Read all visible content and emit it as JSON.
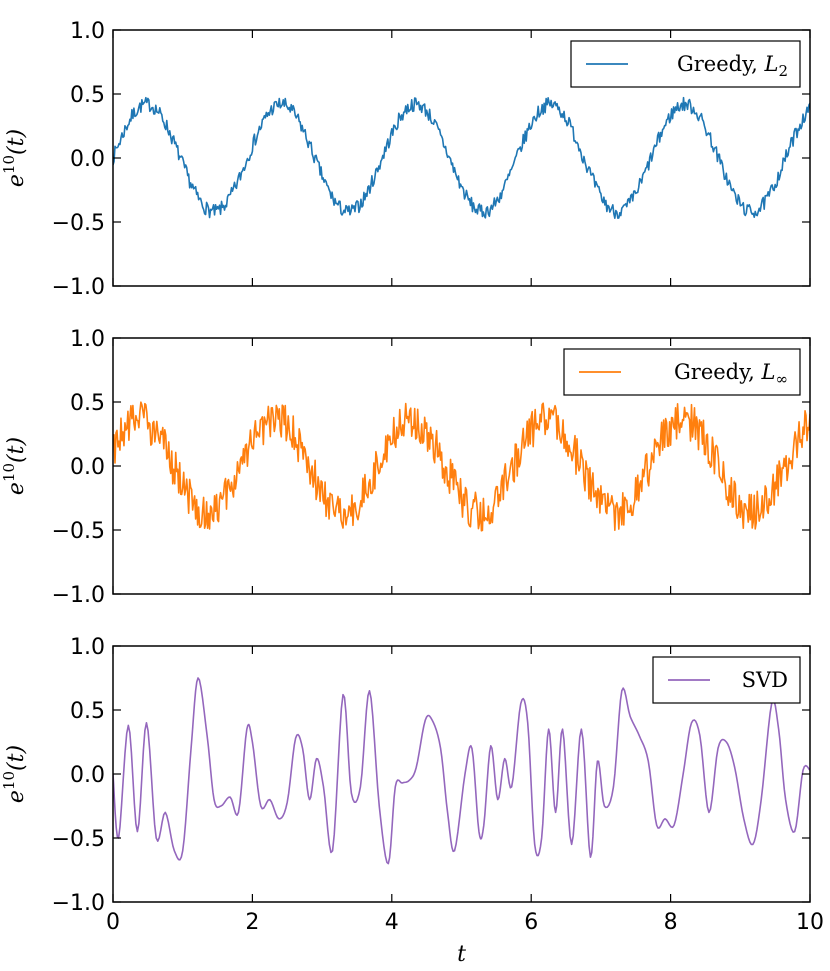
{
  "chart_data": [
    {
      "type": "line",
      "series": [
        {
          "name": "Greedy, L2",
          "color": "#1f77b4"
        }
      ],
      "legend": {
        "text": "Greedy, ",
        "math": "L",
        "sub": "2",
        "loc": "upper right"
      },
      "ylabel": {
        "base": "e",
        "sup": "10",
        "rest": "(t)"
      },
      "xlim": [
        0,
        10
      ],
      "ylim": [
        -1.0,
        1.0
      ],
      "yticks": [
        "1.0",
        "0.5",
        "0.0",
        "−0.5",
        "−1.0"
      ],
      "shape": {
        "amplitude": 0.42,
        "period": 1.93,
        "phase_shift": 0.0,
        "noise": 0.055
      }
    },
    {
      "type": "line",
      "series": [
        {
          "name": "Greedy, L∞",
          "color": "#ff7f0e"
        }
      ],
      "legend": {
        "text": "Greedy, ",
        "math": "L",
        "sub": "∞",
        "loc": "upper right"
      },
      "ylabel": {
        "base": "e",
        "sup": "10",
        "rest": "(t)"
      },
      "xlim": [
        0,
        10
      ],
      "ylim": [
        -1.0,
        1.0
      ],
      "yticks": [
        "1.0",
        "0.5",
        "0.0",
        "−0.5",
        "−1.0"
      ],
      "shape": {
        "amplitude": 0.36,
        "period": 1.95,
        "phase_shift": 0.35,
        "noise": 0.15
      }
    },
    {
      "type": "line",
      "series": [
        {
          "name": "SVD",
          "color": "#9467bd"
        }
      ],
      "legend": {
        "text": "SVD",
        "math": "",
        "sub": "",
        "loc": "upper right"
      },
      "ylabel": {
        "base": "e",
        "sup": "10",
        "rest": "(t)"
      },
      "xlim": [
        0,
        10
      ],
      "ylim": [
        -1.0,
        1.0
      ],
      "yticks": [
        "1.0",
        "0.5",
        "0.0",
        "−0.5",
        "−1.0"
      ],
      "xticks": [
        "0",
        "2",
        "4",
        "6",
        "8",
        "10"
      ],
      "xlabel": "t",
      "points": [
        [
          0,
          0.0
        ],
        [
          0.08,
          -0.5
        ],
        [
          0.22,
          0.38
        ],
        [
          0.35,
          -0.45
        ],
        [
          0.48,
          0.4
        ],
        [
          0.62,
          -0.5
        ],
        [
          0.75,
          -0.3
        ],
        [
          0.88,
          -0.6
        ],
        [
          1.0,
          -0.6
        ],
        [
          1.12,
          0.2
        ],
        [
          1.22,
          0.75
        ],
        [
          1.35,
          0.3
        ],
        [
          1.45,
          -0.2
        ],
        [
          1.55,
          -0.25
        ],
        [
          1.68,
          -0.18
        ],
        [
          1.8,
          -0.3
        ],
        [
          1.92,
          0.35
        ],
        [
          2.0,
          0.25
        ],
        [
          2.12,
          -0.25
        ],
        [
          2.25,
          -0.2
        ],
        [
          2.38,
          -0.35
        ],
        [
          2.5,
          -0.22
        ],
        [
          2.62,
          0.28
        ],
        [
          2.72,
          0.2
        ],
        [
          2.82,
          -0.2
        ],
        [
          2.92,
          0.12
        ],
        [
          3.02,
          -0.1
        ],
        [
          3.15,
          -0.6
        ],
        [
          3.3,
          0.62
        ],
        [
          3.42,
          -0.15
        ],
        [
          3.55,
          -0.1
        ],
        [
          3.68,
          0.65
        ],
        [
          3.82,
          -0.25
        ],
        [
          3.95,
          -0.7
        ],
        [
          4.05,
          -0.1
        ],
        [
          4.15,
          -0.07
        ],
        [
          4.25,
          -0.05
        ],
        [
          4.35,
          0.05
        ],
        [
          4.48,
          0.42
        ],
        [
          4.58,
          0.42
        ],
        [
          4.7,
          0.2
        ],
        [
          4.8,
          -0.3
        ],
        [
          4.9,
          -0.6
        ],
        [
          5.05,
          0.0
        ],
        [
          5.15,
          0.2
        ],
        [
          5.25,
          -0.45
        ],
        [
          5.32,
          -0.4
        ],
        [
          5.42,
          0.22
        ],
        [
          5.52,
          -0.2
        ],
        [
          5.62,
          0.12
        ],
        [
          5.72,
          -0.1
        ],
        [
          5.85,
          0.55
        ],
        [
          5.95,
          0.4
        ],
        [
          6.05,
          -0.55
        ],
        [
          6.15,
          -0.5
        ],
        [
          6.25,
          0.35
        ],
        [
          6.35,
          -0.3
        ],
        [
          6.45,
          0.35
        ],
        [
          6.58,
          -0.55
        ],
        [
          6.72,
          0.35
        ],
        [
          6.85,
          -0.65
        ],
        [
          6.95,
          0.1
        ],
        [
          7.05,
          -0.25
        ],
        [
          7.18,
          -0.1
        ],
        [
          7.3,
          0.65
        ],
        [
          7.42,
          0.45
        ],
        [
          7.55,
          0.3
        ],
        [
          7.68,
          0.1
        ],
        [
          7.8,
          -0.4
        ],
        [
          7.92,
          -0.35
        ],
        [
          8.05,
          -0.4
        ],
        [
          8.18,
          0.0
        ],
        [
          8.3,
          0.4
        ],
        [
          8.42,
          0.3
        ],
        [
          8.55,
          -0.3
        ],
        [
          8.68,
          0.2
        ],
        [
          8.8,
          0.25
        ],
        [
          8.92,
          0.05
        ],
        [
          9.05,
          -0.35
        ],
        [
          9.18,
          -0.55
        ],
        [
          9.3,
          -0.2
        ],
        [
          9.45,
          0.55
        ],
        [
          9.55,
          0.35
        ],
        [
          9.65,
          -0.2
        ],
        [
          9.78,
          -0.45
        ],
        [
          9.9,
          0.03
        ],
        [
          10.0,
          0.03
        ]
      ]
    }
  ]
}
